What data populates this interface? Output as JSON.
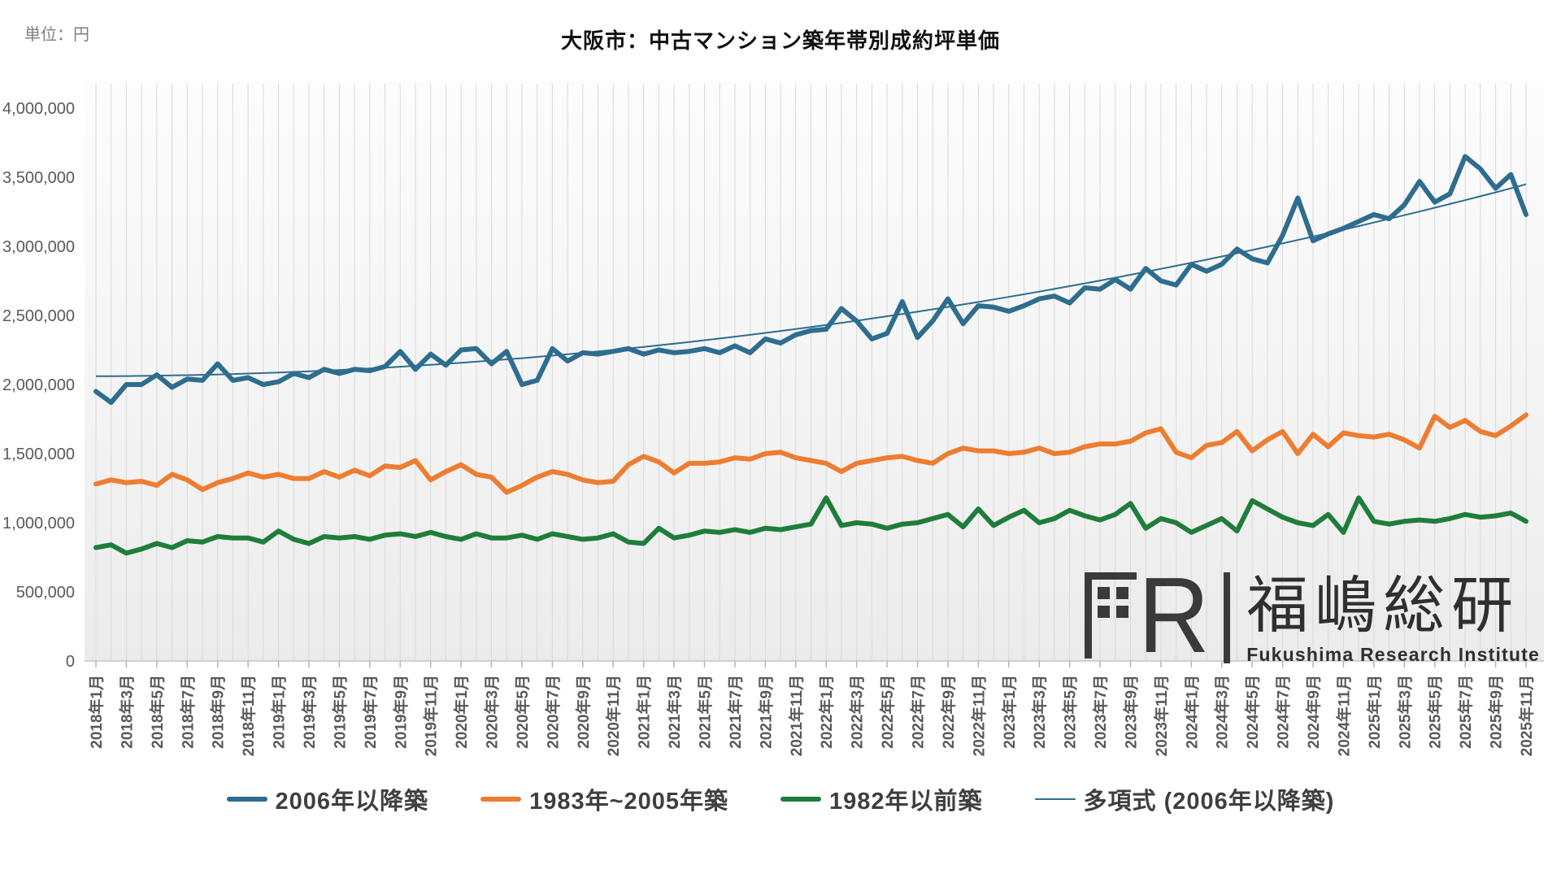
{
  "header": {
    "unit_label": "単位：円",
    "title": "大阪市：中古マンション築年帯別成約坪単価"
  },
  "logo": {
    "mark": "FRI",
    "mark_r": "R",
    "name_ja": "福嶋総研",
    "name_en": "Fukushima Research Institute"
  },
  "chart_data": {
    "type": "line",
    "title": "大阪市：中古マンション築年帯別成約坪単価",
    "ylabel": "単位：円",
    "ylim": [
      0,
      4000000
    ],
    "grid": "vertical-only",
    "legend_position": "bottom",
    "x_label_every": 2,
    "y_ticks": [
      0,
      500000,
      1000000,
      1500000,
      2000000,
      2500000,
      3000000,
      3500000,
      4000000
    ],
    "y_tick_labels": [
      "0",
      "500,000",
      "1,000,000",
      "1,500,000",
      "2,000,000",
      "2,500,000",
      "3,000,000",
      "3,500,000",
      "4,000,000"
    ],
    "x": [
      "2018年1月",
      "2018年2月",
      "2018年3月",
      "2018年4月",
      "2018年5月",
      "2018年6月",
      "2018年7月",
      "2018年8月",
      "2018年9月",
      "2018年10月",
      "2018年11月",
      "2018年12月",
      "2019年1月",
      "2019年2月",
      "2019年3月",
      "2019年4月",
      "2019年5月",
      "2019年6月",
      "2019年7月",
      "2019年8月",
      "2019年9月",
      "2019年10月",
      "2019年11月",
      "2019年12月",
      "2020年1月",
      "2020年2月",
      "2020年3月",
      "2020年4月",
      "2020年5月",
      "2020年6月",
      "2020年7月",
      "2020年8月",
      "2020年9月",
      "2020年10月",
      "2020年11月",
      "2020年12月",
      "2021年1月",
      "2021年2月",
      "2021年3月",
      "2021年4月",
      "2021年5月",
      "2021年6月",
      "2021年7月",
      "2021年8月",
      "2021年9月",
      "2021年10月",
      "2021年11月",
      "2021年12月",
      "2022年1月",
      "2022年2月",
      "2022年3月",
      "2022年4月",
      "2022年5月",
      "2022年6月",
      "2022年7月",
      "2022年8月",
      "2022年9月",
      "2022年10月",
      "2022年11月",
      "2022年12月",
      "2023年1月",
      "2023年2月",
      "2023年3月",
      "2023年4月",
      "2023年5月",
      "2023年6月",
      "2023年7月",
      "2023年8月",
      "2023年9月",
      "2023年10月",
      "2023年11月",
      "2023年12月",
      "2024年1月",
      "2024年2月",
      "2024年3月",
      "2024年4月",
      "2024年5月",
      "2024年6月",
      "2024年7月",
      "2024年8月",
      "2024年9月",
      "2024年10月",
      "2024年11月",
      "2024年12月",
      "2025年1月",
      "2025年2月",
      "2025年3月",
      "2025年4月",
      "2025年5月",
      "2025年6月",
      "2025年7月",
      "2025年8月",
      "2025年9月",
      "2025年10月",
      "2025年11月"
    ],
    "series": [
      {
        "name": "2006年以降築",
        "color": "#2E6D8E",
        "width": 6,
        "values": [
          1950000,
          1870000,
          2000000,
          2000000,
          2070000,
          1980000,
          2040000,
          2030000,
          2150000,
          2030000,
          2050000,
          2000000,
          2020000,
          2080000,
          2050000,
          2110000,
          2080000,
          2110000,
          2100000,
          2130000,
          2240000,
          2110000,
          2220000,
          2140000,
          2250000,
          2260000,
          2150000,
          2240000,
          2000000,
          2030000,
          2260000,
          2170000,
          2230000,
          2220000,
          2240000,
          2260000,
          2220000,
          2250000,
          2230000,
          2240000,
          2260000,
          2230000,
          2280000,
          2230000,
          2330000,
          2300000,
          2360000,
          2390000,
          2400000,
          2550000,
          2460000,
          2330000,
          2370000,
          2600000,
          2340000,
          2460000,
          2620000,
          2440000,
          2570000,
          2560000,
          2530000,
          2570000,
          2620000,
          2640000,
          2590000,
          2700000,
          2690000,
          2760000,
          2690000,
          2840000,
          2750000,
          2720000,
          2870000,
          2820000,
          2870000,
          2980000,
          2910000,
          2880000,
          3080000,
          3350000,
          3040000,
          3090000,
          3130000,
          3180000,
          3230000,
          3200000,
          3300000,
          3470000,
          3320000,
          3380000,
          3650000,
          3560000,
          3420000,
          3520000,
          3230000
        ]
      },
      {
        "name": "1983年~2005年築",
        "color": "#ED7D31",
        "width": 6,
        "values": [
          1280000,
          1310000,
          1290000,
          1300000,
          1270000,
          1350000,
          1310000,
          1240000,
          1290000,
          1320000,
          1360000,
          1330000,
          1350000,
          1320000,
          1320000,
          1370000,
          1330000,
          1380000,
          1340000,
          1410000,
          1400000,
          1450000,
          1310000,
          1370000,
          1420000,
          1350000,
          1330000,
          1220000,
          1270000,
          1330000,
          1370000,
          1350000,
          1310000,
          1290000,
          1300000,
          1420000,
          1480000,
          1440000,
          1360000,
          1430000,
          1430000,
          1440000,
          1470000,
          1460000,
          1500000,
          1510000,
          1470000,
          1450000,
          1430000,
          1370000,
          1430000,
          1450000,
          1470000,
          1480000,
          1450000,
          1430000,
          1500000,
          1540000,
          1520000,
          1520000,
          1500000,
          1510000,
          1540000,
          1500000,
          1510000,
          1550000,
          1570000,
          1570000,
          1590000,
          1650000,
          1680000,
          1510000,
          1470000,
          1560000,
          1580000,
          1660000,
          1520000,
          1600000,
          1660000,
          1500000,
          1640000,
          1550000,
          1650000,
          1630000,
          1620000,
          1640000,
          1600000,
          1540000,
          1770000,
          1690000,
          1740000,
          1660000,
          1630000,
          1700000,
          1780000
        ]
      },
      {
        "name": "1982年以前築",
        "color": "#1E7D3A",
        "width": 6,
        "values": [
          820000,
          840000,
          780000,
          810000,
          850000,
          820000,
          870000,
          860000,
          900000,
          890000,
          890000,
          860000,
          940000,
          880000,
          850000,
          900000,
          890000,
          900000,
          880000,
          910000,
          920000,
          900000,
          930000,
          900000,
          880000,
          920000,
          890000,
          890000,
          910000,
          880000,
          920000,
          900000,
          880000,
          890000,
          920000,
          860000,
          850000,
          960000,
          890000,
          910000,
          940000,
          930000,
          950000,
          930000,
          960000,
          950000,
          970000,
          990000,
          1180000,
          980000,
          1000000,
          990000,
          960000,
          990000,
          1000000,
          1030000,
          1060000,
          970000,
          1100000,
          980000,
          1040000,
          1090000,
          1000000,
          1030000,
          1090000,
          1050000,
          1020000,
          1060000,
          1140000,
          960000,
          1030000,
          1000000,
          930000,
          980000,
          1030000,
          940000,
          1160000,
          1100000,
          1040000,
          1000000,
          980000,
          1060000,
          930000,
          1180000,
          1010000,
          990000,
          1010000,
          1020000,
          1010000,
          1030000,
          1060000,
          1040000,
          1050000,
          1070000,
          1010000
        ]
      }
    ],
    "trendline": {
      "name": "多項式 (2006年以降築)",
      "color": "#2E6D8E",
      "width": 2,
      "basis_series": "2006年以降築",
      "coefficients": {
        "c0": 2060000,
        "c1": 390,
        "c2": 153
      }
    }
  }
}
